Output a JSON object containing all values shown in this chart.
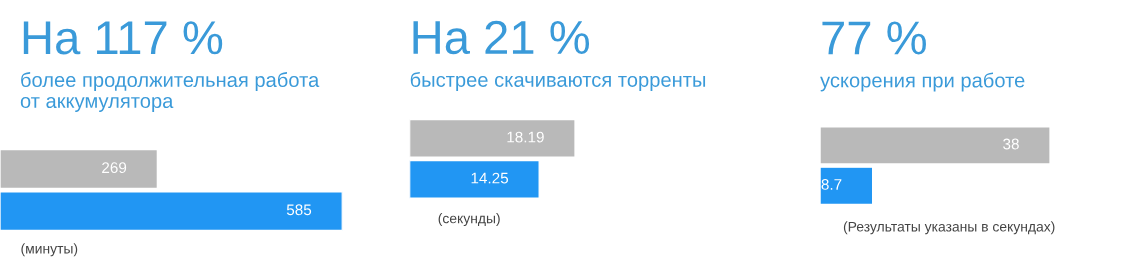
{
  "chart_data": [
    {
      "type": "bar",
      "orientation": "horizontal",
      "title": "На 117 %",
      "subtitle": "более продолжительная работа\nот аккумулятора",
      "annotations": [
        "(минуты)"
      ],
      "categories": [
        null,
        null
      ],
      "values": [
        269,
        585
      ],
      "colors": [
        "#b9b9b9",
        "#2196f3"
      ],
      "data_labels": true
    },
    {
      "type": "bar",
      "orientation": "horizontal",
      "title": "На 21 %",
      "subtitle": "быстрее скачиваются торренты",
      "annotations": [
        "(секунды)"
      ],
      "categories": [
        null,
        null
      ],
      "values": [
        18.19,
        14.25
      ],
      "colors": [
        "#b9b9b9",
        "#2196f3"
      ],
      "data_labels": true
    },
    {
      "type": "bar",
      "orientation": "horizontal",
      "title": "77 %",
      "subtitle": "ускорения при работе",
      "annotations": [
        "(Результаты указаны в секундах)"
      ],
      "categories": [
        null,
        null
      ],
      "values": [
        38,
        8.7
      ],
      "colors": [
        "#b9b9b9",
        "#2196f3"
      ],
      "data_labels": true
    }
  ]
}
